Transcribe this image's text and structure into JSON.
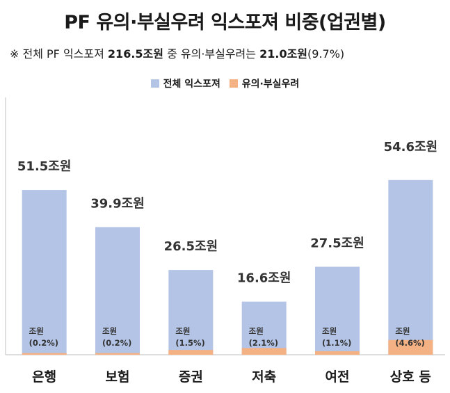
{
  "title": "PF 유의·부실우려 익스포져 비중(업권별)",
  "subtitle": {
    "prefix": "※ 전체 PF 익스포져 ",
    "total": "216.5조원",
    "middle": " 중 유의·부실우려는 ",
    "risk": "21.0조원",
    "ratio": "(9.7%)"
  },
  "colors": {
    "total": "#B4C4E6",
    "risk": "#F4B183",
    "axis": "#BFBFBF"
  },
  "chart_data": {
    "type": "bar",
    "categories": [
      "은행",
      "보험",
      "증권",
      "저축",
      "여전",
      "상호 등"
    ],
    "series": [
      {
        "name": "전체 익스포져",
        "values": [
          51.5,
          39.9,
          26.5,
          16.6,
          27.5,
          54.6
        ],
        "labels": [
          "51.5조원",
          "39.9조원",
          "26.5조원",
          "16.6조원",
          "27.5조원",
          "54.6조원"
        ]
      },
      {
        "name": "유의·부실우려",
        "values": [
          0.2,
          0.2,
          1.5,
          2.1,
          1.1,
          4.6
        ],
        "labels": [
          "조원\n(0.2%)",
          "조원\n(0.2%)",
          "조원\n(1.5%)",
          "조원\n(2.1%)",
          "조원\n(1.1%)",
          "조원\n(4.6%)"
        ]
      }
    ],
    "ylim": [
      0,
      60
    ],
    "grid": false,
    "legend": "top-center"
  }
}
